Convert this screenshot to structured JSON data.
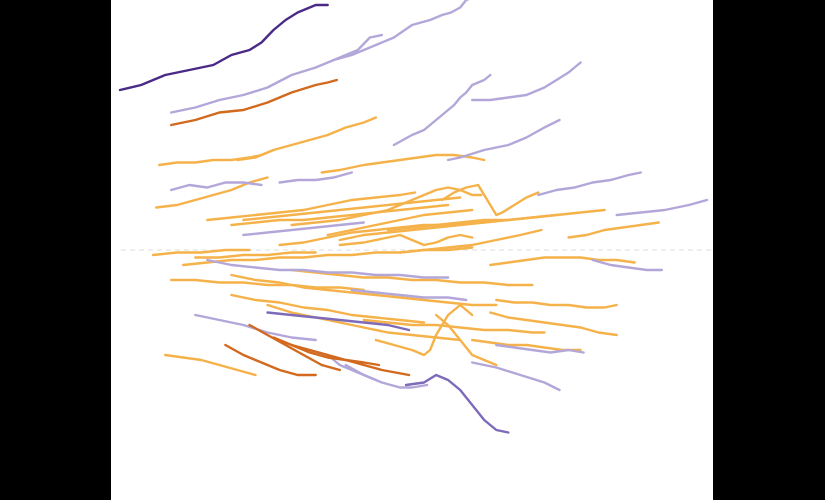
{
  "chart_data": {
    "type": "line",
    "title": "",
    "xlabel": "",
    "ylabel": "",
    "xlim": [
      0,
      100
    ],
    "ylim": [
      -100,
      100
    ],
    "baseline": 0,
    "grid": false,
    "legend": "none",
    "colors": {
      "dark_purple": "#4a2a86",
      "mid_purple": "#7d6ab8",
      "light_purple": "#b3a7d9",
      "dark_orange": "#d2691e",
      "light_orange": "#f5b24a",
      "baseline": "#dddddd"
    },
    "series": [
      {
        "color": "dark_purple",
        "x": [
          1.5,
          5,
          9,
          13,
          17,
          20,
          23,
          25,
          27,
          29,
          31,
          34,
          36
        ],
        "y": [
          64,
          66,
          70,
          72,
          74,
          78,
          80,
          83,
          88,
          92,
          95,
          98,
          98
        ]
      },
      {
        "color": "light_purple",
        "x": [
          10,
          14,
          18,
          22,
          26,
          30,
          34,
          38,
          41,
          43,
          45
        ],
        "y": [
          55,
          57,
          60,
          62,
          65,
          70,
          73,
          77,
          80,
          85,
          86
        ]
      },
      {
        "color": "dark_orange",
        "x": [
          10,
          14,
          18,
          22,
          26,
          30,
          34,
          36,
          37.5
        ],
        "y": [
          50,
          52,
          55,
          56,
          59,
          63,
          66,
          67,
          68
        ]
      },
      {
        "color": "light_purple",
        "x": [
          37,
          40,
          44,
          47,
          50,
          53,
          55,
          56.5,
          58,
          59,
          60
        ],
        "y": [
          76,
          78,
          82,
          85,
          90,
          92,
          94,
          95,
          97,
          100,
          101
        ]
      },
      {
        "color": "light_purple",
        "x": [
          47,
          50,
          52,
          54,
          56,
          57,
          58,
          59,
          60,
          62,
          63
        ],
        "y": [
          42,
          46,
          48,
          52,
          56,
          58,
          61,
          63,
          66,
          68,
          70
        ]
      },
      {
        "color": "light_purple",
        "x": [
          60,
          63,
          66,
          69,
          72,
          74,
          76,
          78
        ],
        "y": [
          60,
          60,
          61,
          62,
          65,
          68,
          71,
          75
        ]
      },
      {
        "color": "light_orange",
        "x": [
          21,
          24,
          27,
          30,
          33,
          36,
          39,
          42,
          44
        ],
        "y": [
          36,
          37,
          40,
          42,
          44,
          46,
          49,
          51,
          53
        ]
      },
      {
        "color": "light_orange",
        "x": [
          8,
          11,
          14,
          17,
          20,
          23,
          25,
          27
        ],
        "y": [
          34,
          35,
          35,
          36,
          36,
          37,
          38,
          40
        ]
      },
      {
        "color": "light_orange",
        "x": [
          35,
          38,
          42,
          45,
          48,
          51,
          54,
          57,
          60,
          62
        ],
        "y": [
          31,
          32,
          34,
          35,
          36,
          37,
          38,
          38,
          37,
          36
        ]
      },
      {
        "color": "light_purple",
        "x": [
          56,
          58,
          62,
          66,
          69,
          72,
          74.5
        ],
        "y": [
          36,
          37,
          40,
          42,
          45,
          49,
          52
        ]
      },
      {
        "color": "light_purple",
        "x": [
          28,
          31,
          34,
          37,
          40
        ],
        "y": [
          27,
          28,
          28,
          29,
          31
        ]
      },
      {
        "color": "light_orange",
        "x": [
          7.5,
          11,
          14,
          17,
          20,
          23,
          26
        ],
        "y": [
          17,
          18,
          20,
          22,
          24,
          27,
          29
        ]
      },
      {
        "color": "light_purple",
        "x": [
          10,
          13,
          16,
          19,
          22,
          25
        ],
        "y": [
          24,
          26,
          25,
          27,
          27,
          26
        ]
      },
      {
        "color": "light_orange",
        "x": [
          16,
          20,
          24,
          28,
          32,
          36,
          40,
          44,
          48,
          50.5
        ],
        "y": [
          12,
          13,
          14,
          15,
          16,
          18,
          20,
          21,
          22,
          23
        ]
      },
      {
        "color": "light_orange",
        "x": [
          55,
          57,
          59,
          61,
          62,
          63,
          64,
          65,
          67,
          69,
          71
        ],
        "y": [
          20,
          23,
          25,
          26,
          22,
          18,
          14,
          15,
          18,
          21,
          23
        ]
      },
      {
        "color": "light_orange",
        "x": [
          30,
          34,
          38,
          42,
          46,
          50,
          52,
          54,
          56,
          58,
          60,
          61.5
        ],
        "y": [
          10,
          11,
          12,
          14,
          16,
          20,
          22,
          24,
          25,
          24,
          22,
          22
        ]
      },
      {
        "color": "light_orange",
        "x": [
          22,
          26,
          30,
          34,
          38,
          42,
          46,
          50,
          54,
          58
        ],
        "y": [
          12,
          13,
          14,
          15,
          16,
          17,
          18,
          19,
          20,
          21
        ]
      },
      {
        "color": "light_orange",
        "x": [
          20,
          24,
          28,
          32,
          36,
          40,
          44,
          48,
          52,
          56
        ],
        "y": [
          10,
          11,
          12,
          12,
          13,
          14,
          15,
          16,
          17,
          18
        ]
      },
      {
        "color": "light_purple",
        "x": [
          22,
          26,
          30,
          34,
          38,
          42
        ],
        "y": [
          6,
          7,
          8,
          9,
          10,
          11
        ]
      },
      {
        "color": "light_orange",
        "x": [
          28,
          32,
          36,
          40,
          44,
          48,
          52,
          56,
          60,
          64
        ],
        "y": [
          2,
          3,
          5,
          7,
          8,
          9,
          10,
          10,
          11,
          12
        ]
      },
      {
        "color": "light_orange",
        "x": [
          38,
          42,
          46,
          50,
          54,
          58,
          62,
          66,
          70,
          74
        ],
        "y": [
          4,
          6,
          7,
          8,
          9,
          10,
          11,
          12,
          13,
          14
        ]
      },
      {
        "color": "light_orange",
        "x": [
          46,
          50,
          54,
          58,
          62,
          66,
          70,
          74,
          78,
          82
        ],
        "y": [
          8,
          9,
          10,
          11,
          12,
          12,
          13,
          14,
          15,
          16
        ]
      },
      {
        "color": "light_orange",
        "x": [
          36,
          40,
          44,
          48,
          52,
          56,
          60
        ],
        "y": [
          6,
          8,
          10,
          12,
          14,
          15,
          16
        ]
      },
      {
        "color": "light_orange",
        "x": [
          38,
          42,
          46,
          48,
          50,
          52,
          54,
          56,
          58,
          60
        ],
        "y": [
          2,
          3,
          5,
          6,
          4,
          2,
          3,
          5,
          6,
          5
        ]
      },
      {
        "color": "light_orange",
        "x": [
          48,
          52,
          56,
          60,
          64,
          68,
          71.5
        ],
        "y": [
          -1,
          0,
          1,
          2,
          4,
          6,
          8
        ]
      },
      {
        "color": "light_purple",
        "x": [
          71,
          74,
          77,
          80,
          83,
          86,
          88
        ],
        "y": [
          22,
          24,
          25,
          27,
          28,
          30,
          31
        ]
      },
      {
        "color": "light_orange",
        "x": [
          76,
          79,
          82,
          85,
          88,
          91
        ],
        "y": [
          5,
          6,
          8,
          9,
          10,
          11
        ]
      },
      {
        "color": "light_purple",
        "x": [
          84,
          88,
          92,
          96,
          99
        ],
        "y": [
          14,
          15,
          16,
          18,
          20
        ]
      },
      {
        "color": "light_orange",
        "x": [
          7,
          11,
          15,
          19,
          23
        ],
        "y": [
          -2,
          -1,
          -1,
          0,
          0
        ]
      },
      {
        "color": "light_orange",
        "x": [
          14,
          18,
          22,
          26,
          30,
          34
        ],
        "y": [
          -3,
          -3,
          -2,
          -2,
          -1,
          -1
        ]
      },
      {
        "color": "light_orange",
        "x": [
          12,
          16,
          20,
          24,
          28,
          32,
          36,
          40,
          44,
          48,
          52,
          56,
          60
        ],
        "y": [
          -6,
          -5,
          -4,
          -4,
          -3,
          -3,
          -2,
          -2,
          -1,
          -1,
          0,
          0,
          1
        ]
      },
      {
        "color": "light_purple",
        "x": [
          16,
          20,
          24,
          28,
          32,
          36,
          40,
          44,
          48,
          52,
          56
        ],
        "y": [
          -4,
          -6,
          -7,
          -8,
          -8,
          -9,
          -9,
          -10,
          -10,
          -11,
          -11
        ]
      },
      {
        "color": "light_orange",
        "x": [
          30,
          34,
          38,
          42,
          46,
          50,
          54,
          58,
          62,
          66,
          70
        ],
        "y": [
          -8,
          -9,
          -10,
          -11,
          -11,
          -12,
          -12,
          -13,
          -13,
          -14,
          -14
        ]
      },
      {
        "color": "light_orange",
        "x": [
          10,
          14,
          18,
          22,
          26,
          30,
          34,
          38,
          42
        ],
        "y": [
          -12,
          -12,
          -13,
          -13,
          -14,
          -14,
          -15,
          -15,
          -16
        ]
      },
      {
        "color": "light_orange",
        "x": [
          20,
          24,
          28,
          32,
          36,
          40,
          44,
          48,
          52,
          56,
          60,
          64
        ],
        "y": [
          -10,
          -12,
          -13,
          -15,
          -16,
          -17,
          -18,
          -19,
          -20,
          -21,
          -22,
          -22
        ]
      },
      {
        "color": "light_purple",
        "x": [
          40,
          44,
          48,
          52,
          56,
          59
        ],
        "y": [
          -16,
          -17,
          -18,
          -19,
          -19,
          -20
        ]
      },
      {
        "color": "light_orange",
        "x": [
          20,
          24,
          28,
          32,
          36,
          40,
          44,
          48,
          52
        ],
        "y": [
          -18,
          -20,
          -21,
          -23,
          -24,
          -26,
          -27,
          -28,
          -29
        ]
      },
      {
        "color": "light_orange",
        "x": [
          26,
          30,
          34,
          38,
          42,
          46,
          50,
          54,
          58
        ],
        "y": [
          -22,
          -25,
          -27,
          -29,
          -31,
          -33,
          -34,
          -35,
          -36
        ]
      },
      {
        "color": "mid_purple",
        "x": [
          26,
          30,
          34,
          38,
          42,
          46,
          49.5
        ],
        "y": [
          -25,
          -26,
          -27,
          -28,
          -29,
          -30,
          -32
        ]
      },
      {
        "color": "light_purple",
        "x": [
          14,
          18,
          22,
          26,
          30,
          34
        ],
        "y": [
          -26,
          -28,
          -30,
          -33,
          -35,
          -36
        ]
      },
      {
        "color": "light_orange",
        "x": [
          42,
          46,
          50,
          54,
          58,
          62,
          66,
          70,
          72
        ],
        "y": [
          -28,
          -29,
          -30,
          -30,
          -31,
          -32,
          -32,
          -33,
          -33
        ]
      },
      {
        "color": "light_orange",
        "x": [
          64,
          67,
          70,
          73,
          76,
          79,
          82,
          84
        ],
        "y": [
          -20,
          -21,
          -21,
          -22,
          -22,
          -23,
          -23,
          -22
        ]
      },
      {
        "color": "light_orange",
        "x": [
          63,
          66,
          69,
          72,
          75,
          78,
          81,
          84,
          87
        ],
        "y": [
          -6,
          -5,
          -4,
          -3,
          -3,
          -3,
          -4,
          -4,
          -5
        ]
      },
      {
        "color": "light_purple",
        "x": [
          80,
          83,
          86,
          89,
          91.5
        ],
        "y": [
          -4,
          -6,
          -7,
          -8,
          -8
        ]
      },
      {
        "color": "light_orange",
        "x": [
          63,
          66,
          69,
          72,
          75,
          78,
          81,
          84
        ],
        "y": [
          -25,
          -27,
          -28,
          -29,
          -30,
          -31,
          -33,
          -34
        ]
      },
      {
        "color": "light_orange",
        "x": [
          60,
          63,
          66,
          69,
          72,
          75,
          78
        ],
        "y": [
          -36,
          -37,
          -38,
          -38,
          -39,
          -40,
          -40
        ]
      },
      {
        "color": "light_purple",
        "x": [
          64,
          67,
          70,
          73,
          76,
          78.5
        ],
        "y": [
          -38,
          -39,
          -40,
          -41,
          -40,
          -41
        ]
      },
      {
        "color": "light_orange",
        "x": [
          9,
          12,
          15,
          18,
          21,
          24
        ],
        "y": [
          -42,
          -43,
          -44,
          -46,
          -48,
          -50
        ]
      },
      {
        "color": "dark_orange",
        "x": [
          19,
          22,
          25,
          28,
          31,
          34
        ],
        "y": [
          -38,
          -42,
          -45,
          -48,
          -50,
          -50
        ]
      },
      {
        "color": "dark_orange",
        "x": [
          23,
          26,
          29,
          32,
          35,
          38
        ],
        "y": [
          -30,
          -34,
          -38,
          -42,
          -46,
          -48
        ]
      },
      {
        "color": "dark_orange",
        "x": [
          27,
          30,
          33,
          36,
          39,
          42,
          44.5
        ],
        "y": [
          -35,
          -38,
          -40,
          -42,
          -44,
          -45,
          -46
        ]
      },
      {
        "color": "dark_orange",
        "x": [
          30,
          33,
          36,
          39,
          42,
          45,
          49.5
        ],
        "y": [
          -38,
          -41,
          -43,
          -44,
          -46,
          -48,
          -50
        ]
      },
      {
        "color": "light_orange",
        "x": [
          44,
          47,
          50,
          52,
          53,
          54,
          56,
          58,
          60
        ],
        "y": [
          -36,
          -38,
          -40,
          -42,
          -40,
          -34,
          -26,
          -22,
          -26
        ]
      },
      {
        "color": "light_purple",
        "x": [
          33,
          36,
          38,
          40,
          42,
          44
        ],
        "y": [
          -40,
          -42,
          -46,
          -48,
          -50,
          -52
        ]
      },
      {
        "color": "light_purple",
        "x": [
          39,
          42,
          45,
          48,
          50,
          52.5
        ],
        "y": [
          -46,
          -50,
          -53,
          -55,
          -55,
          -54
        ]
      },
      {
        "color": "mid_purple",
        "x": [
          49,
          52,
          54,
          56,
          58,
          60,
          62,
          64,
          66
        ],
        "y": [
          -54,
          -53,
          -50,
          -52,
          -56,
          -62,
          -68,
          -72,
          -73
        ]
      },
      {
        "color": "light_purple",
        "x": [
          60,
          64,
          68,
          72,
          74.5
        ],
        "y": [
          -45,
          -47,
          -50,
          -53,
          -56
        ]
      },
      {
        "color": "light_orange",
        "x": [
          54,
          56,
          58,
          60,
          62,
          64
        ],
        "y": [
          -26,
          -30,
          -36,
          -42,
          -44,
          -46
        ]
      }
    ]
  }
}
